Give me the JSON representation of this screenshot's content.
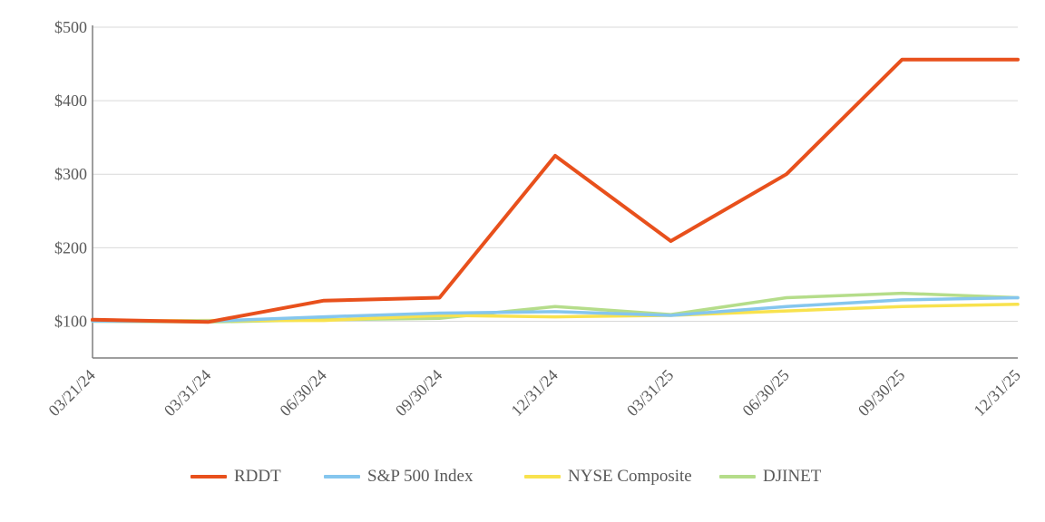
{
  "chart_data": {
    "type": "line",
    "categories": [
      "03/21/24",
      "03/31/24",
      "06/30/24",
      "09/30/24",
      "12/31/24",
      "03/31/25",
      "06/30/25",
      "09/30/25",
      "12/31/25"
    ],
    "y_ticks": [
      "$100",
      "$200",
      "$300",
      "$400",
      "$500"
    ],
    "ylim": [
      50,
      500
    ],
    "grid": true,
    "legend_position": "bottom",
    "series": [
      {
        "name": "RDDT",
        "color": "#E8501C",
        "values": [
          102,
          99,
          128,
          132,
          325,
          209,
          300,
          456,
          456
        ]
      },
      {
        "name": "S&P 500 Index",
        "color": "#85C6EE",
        "values": [
          100,
          100,
          106,
          111,
          113,
          108,
          120,
          129,
          132
        ]
      },
      {
        "name": "NYSE Composite",
        "color": "#F8E24E",
        "values": [
          100,
          101,
          101,
          108,
          106,
          108,
          114,
          120,
          123
        ]
      },
      {
        "name": "DJINET",
        "color": "#B5DD8A",
        "values": [
          100,
          99,
          102,
          104,
          120,
          109,
          132,
          138,
          132
        ]
      }
    ]
  }
}
